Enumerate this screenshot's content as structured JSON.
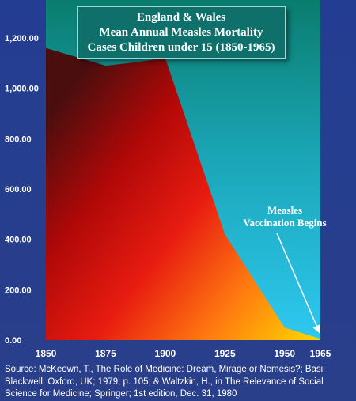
{
  "chart_data": {
    "type": "area",
    "title": [
      "England & Wales",
      "Mean Annual Measles Mortality",
      "Cases Children under 15 (1850-1965)"
    ],
    "xlabel": "",
    "ylabel": "",
    "x": [
      1850,
      1875,
      1900,
      1925,
      1950,
      1965
    ],
    "x_tick_labels": [
      "1850",
      "1875",
      "1900",
      "1925",
      "1950",
      "1965"
    ],
    "points": [
      {
        "x": 1850,
        "y": 1160
      },
      {
        "x": 1875,
        "y": 1090
      },
      {
        "x": 1885,
        "y": 1100
      },
      {
        "x": 1900,
        "y": 1120
      },
      {
        "x": 1925,
        "y": 420
      },
      {
        "x": 1950,
        "y": 50
      },
      {
        "x": 1965,
        "y": 5
      }
    ],
    "ylim": [
      0,
      1200
    ],
    "y_ticks": [
      0,
      200,
      400,
      600,
      800,
      1000,
      1200
    ],
    "y_tick_labels": [
      "0.00",
      "200.00",
      "400.00",
      "600.00",
      "800.00",
      "1,000.00",
      "1,200.00"
    ],
    "grid": false,
    "annotations": [
      {
        "text_lines": [
          "Measles",
          "Vaccination Begins"
        ],
        "arrow_to_x": 1965,
        "arrow_to_y": 10
      }
    ]
  },
  "source": {
    "label": "Source",
    "text": ":  McKeown, T., The Role of Medicine: Dream, Mirage or Nemesis?; Basil Blackwell; Oxford, UK; 1979; p. 105; & Waltzkin, H., in The Relevance of Social Science for Medicine; Springer; 1st edition, Dec. 31, 1980"
  },
  "colors": {
    "plot_top": "#0a7c6e",
    "plot_bottom": "#2ec8f0",
    "area_dark": "#4a0e0e",
    "area_red": "#d80e0e",
    "area_yellow": "#ffd000",
    "page_background": "#2a3f8a",
    "title_box": "#0f6f6b"
  }
}
